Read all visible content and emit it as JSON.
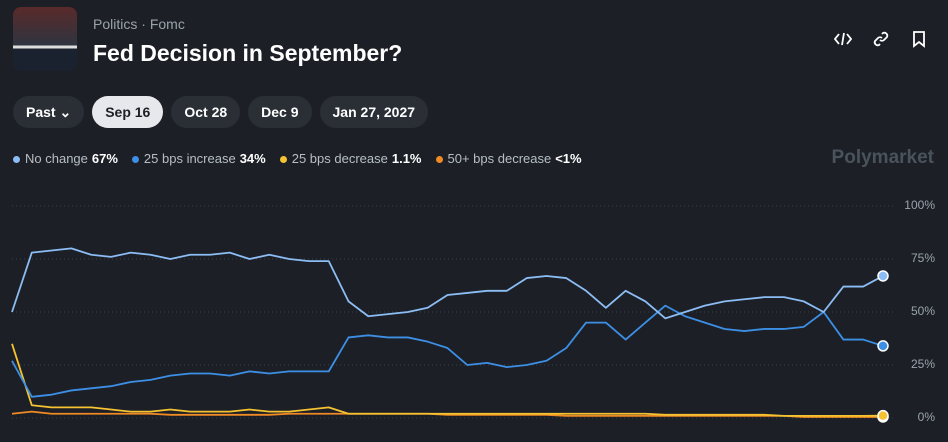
{
  "header": {
    "breadcrumb": [
      "Politics",
      "Fomc"
    ],
    "title": "Fed Decision in September?"
  },
  "tabs": [
    "Past",
    "Sep 16",
    "Oct 28",
    "Dec 9",
    "Jan 27, 2027"
  ],
  "brand": "Polymarket",
  "chart_data": {
    "type": "line",
    "ylim": [
      0,
      100
    ],
    "yticks": [
      {
        "value": 0,
        "label": "0%"
      },
      {
        "value": 25,
        "label": "25%"
      },
      {
        "value": 50,
        "label": "50%"
      },
      {
        "value": 75,
        "label": "75%"
      },
      {
        "value": 100,
        "label": "100%"
      }
    ],
    "grid": true,
    "series": [
      {
        "name": "No change",
        "color": "#8cbdf5",
        "value_label": "67%",
        "values": [
          50,
          78,
          79,
          80,
          77,
          76,
          78,
          77,
          75,
          77,
          77,
          78,
          75,
          77,
          75,
          74,
          74,
          55,
          48,
          49,
          50,
          52,
          58,
          59,
          60,
          60,
          66,
          67,
          66,
          60,
          52,
          60,
          55,
          47,
          50,
          53,
          55,
          56,
          57,
          57,
          55,
          50,
          62,
          62,
          67
        ]
      },
      {
        "name": "25 bps increase",
        "color": "#3d8fe6",
        "value_label": "34%",
        "values": [
          27,
          10,
          11,
          13,
          14,
          15,
          17,
          18,
          20,
          21,
          21,
          20,
          22,
          21,
          22,
          22,
          22,
          38,
          39,
          38,
          38,
          36,
          33,
          25,
          26,
          24,
          25,
          27,
          33,
          45,
          45,
          37,
          45,
          53,
          48,
          45,
          42,
          41,
          42,
          42,
          43,
          50,
          37,
          37,
          34
        ]
      },
      {
        "name": "25 bps decrease",
        "color": "#f5c232",
        "value_label": "1.1%",
        "values": [
          35,
          6,
          5,
          5,
          5,
          4,
          3,
          3,
          4,
          3,
          3,
          3,
          4,
          3,
          3,
          4,
          5,
          2,
          2,
          2,
          2,
          2,
          2,
          2,
          2,
          2,
          2,
          2,
          2,
          2,
          2,
          2,
          2,
          1.5,
          1.5,
          1.5,
          1.5,
          1.5,
          1.5,
          1,
          1,
          1,
          1,
          1,
          1.1
        ]
      },
      {
        "name": "50+ bps decrease",
        "color": "#f08a24",
        "value_label": "<1%",
        "values": [
          2,
          3,
          2,
          2,
          2,
          2,
          2,
          2,
          1.5,
          1.5,
          1.5,
          1.5,
          1.5,
          1.5,
          2,
          2,
          2,
          2,
          2,
          2,
          2,
          2,
          1.5,
          1.5,
          1.5,
          1.5,
          1.5,
          1.5,
          1,
          1,
          1,
          1,
          1,
          1,
          1,
          1,
          1,
          1,
          1,
          1,
          0.5,
          0.5,
          0.5,
          0.5,
          0.5
        ]
      }
    ]
  }
}
